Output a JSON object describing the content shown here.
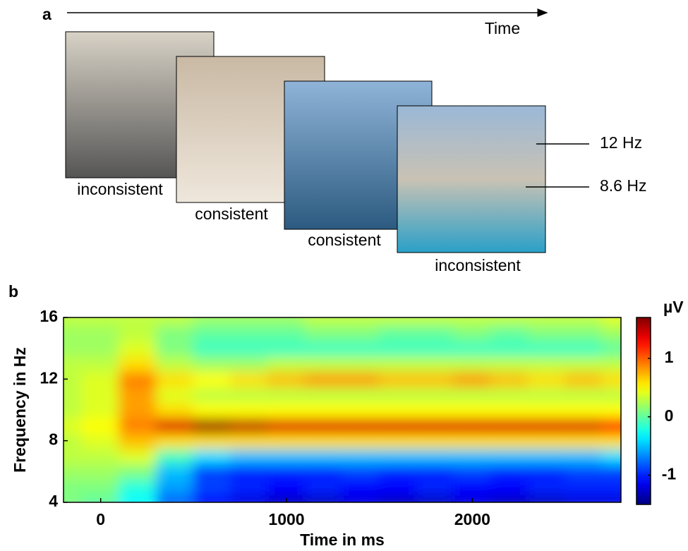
{
  "panel_a": {
    "label": "a",
    "axis_label": "Time",
    "frames": [
      {
        "label": "inconsistent"
      },
      {
        "label": "consistent"
      },
      {
        "label": "consistent"
      },
      {
        "label": "inconsistent"
      }
    ],
    "frequency_labels": [
      "12 Hz",
      "8.6 Hz"
    ]
  },
  "chart_data": {
    "type": "heatmap",
    "panel_label": "b",
    "x_label": "Time in ms",
    "y_label": "Frequency in Hz",
    "colorbar_label": "µV",
    "colormap": "jet",
    "x": [
      -200,
      0,
      200,
      400,
      600,
      800,
      1000,
      1200,
      1400,
      1600,
      1800,
      2000,
      2200,
      2400,
      2600,
      2800
    ],
    "y": [
      4,
      5,
      6,
      7,
      8,
      9,
      10,
      11,
      12,
      13,
      14,
      15,
      16
    ],
    "z": [
      [
        0.1,
        0.0,
        -0.3,
        -0.8,
        -1.1,
        -1.2,
        -1.3,
        -1.3,
        -1.2,
        -1.3,
        -1.3,
        -1.2,
        -1.3,
        -1.3,
        -1.2,
        -1.2
      ],
      [
        0.1,
        0.1,
        -0.2,
        -0.6,
        -0.9,
        -1.0,
        -1.1,
        -1.0,
        -1.1,
        -1.1,
        -1.0,
        -1.1,
        -1.1,
        -1.0,
        -1.0,
        -1.0
      ],
      [
        0.2,
        0.2,
        0.1,
        -0.5,
        -0.9,
        -1.0,
        -1.0,
        -1.0,
        -0.9,
        -1.0,
        -1.0,
        -0.9,
        -1.0,
        -1.0,
        -0.9,
        -0.9
      ],
      [
        0.3,
        0.3,
        0.4,
        -0.1,
        -0.4,
        -0.5,
        -0.5,
        -0.5,
        -0.5,
        -0.5,
        -0.5,
        -0.5,
        -0.5,
        -0.5,
        -0.5,
        -0.4
      ],
      [
        0.3,
        0.4,
        0.7,
        0.6,
        0.6,
        0.6,
        0.6,
        0.6,
        0.6,
        0.6,
        0.6,
        0.6,
        0.6,
        0.6,
        0.6,
        0.6
      ],
      [
        0.4,
        0.5,
        0.9,
        1.4,
        1.6,
        1.5,
        1.4,
        1.4,
        1.4,
        1.4,
        1.4,
        1.4,
        1.4,
        1.4,
        1.4,
        1.3
      ],
      [
        0.3,
        0.4,
        0.8,
        0.6,
        0.5,
        0.5,
        0.5,
        0.5,
        0.5,
        0.5,
        0.5,
        0.5,
        0.5,
        0.5,
        0.5,
        0.5
      ],
      [
        0.3,
        0.4,
        0.8,
        0.4,
        0.3,
        0.3,
        0.3,
        0.3,
        0.3,
        0.3,
        0.3,
        0.3,
        0.3,
        0.3,
        0.3,
        0.3
      ],
      [
        0.3,
        0.4,
        0.9,
        0.6,
        0.5,
        0.6,
        0.7,
        0.8,
        0.8,
        0.7,
        0.7,
        0.8,
        0.7,
        0.6,
        0.7,
        0.6
      ],
      [
        0.3,
        0.3,
        0.6,
        0.3,
        0.2,
        0.2,
        0.3,
        0.3,
        0.3,
        0.3,
        0.3,
        0.3,
        0.3,
        0.3,
        0.3,
        0.3
      ],
      [
        0.2,
        0.2,
        0.4,
        0.1,
        -0.1,
        -0.1,
        -0.1,
        -0.1,
        -0.1,
        -0.1,
        -0.1,
        -0.1,
        -0.1,
        -0.1,
        -0.1,
        0.0
      ],
      [
        0.2,
        0.2,
        0.3,
        0.1,
        0.0,
        0.0,
        0.0,
        0.1,
        0.1,
        0.0,
        0.0,
        0.1,
        0.0,
        0.1,
        0.1,
        0.2
      ],
      [
        0.3,
        0.3,
        0.3,
        0.3,
        0.2,
        0.2,
        0.2,
        0.3,
        0.3,
        0.3,
        0.3,
        0.3,
        0.3,
        0.3,
        0.3,
        0.4
      ]
    ],
    "xlim": [
      -200,
      2800
    ],
    "ylim": [
      4,
      16
    ],
    "xticks": [
      0,
      1000,
      2000
    ],
    "yticks": [
      4,
      8,
      12,
      16
    ],
    "clim": [
      -1.5,
      1.7
    ],
    "cticks": [
      -1,
      0,
      1
    ]
  }
}
